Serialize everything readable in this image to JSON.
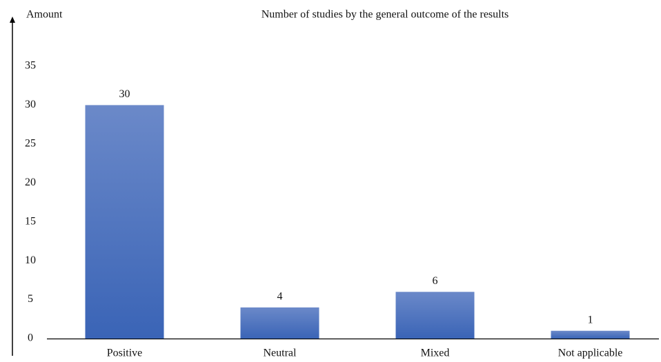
{
  "chart_data": {
    "type": "bar",
    "title": "Number of studies by the general outcome of the results",
    "y_label": "Amount",
    "categories": [
      "Positive",
      "Neutral",
      "Mixed",
      "Not applicable"
    ],
    "values": [
      30,
      4,
      6,
      1
    ],
    "color": "#4a70bd",
    "ylim": [
      0,
      35
    ],
    "yticks": [
      0,
      5,
      10,
      15,
      20,
      25,
      30,
      35
    ],
    "grid": false
  }
}
